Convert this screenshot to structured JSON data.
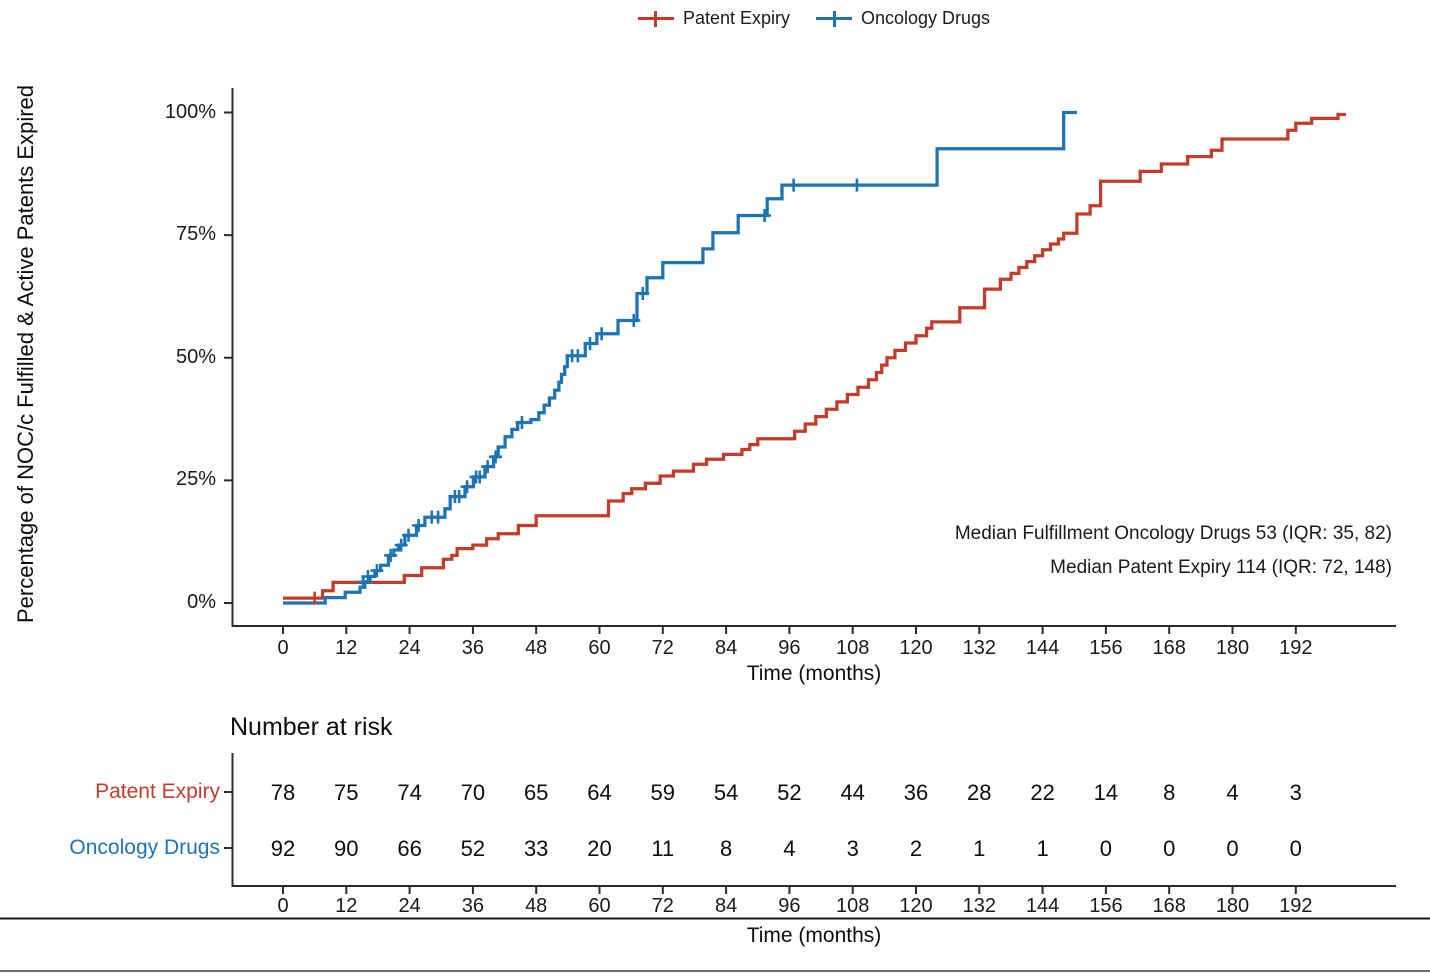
{
  "figure": {
    "y_axis_title": "Percentage of NOC/c Fulfilled & Active Patents Expired",
    "x_axis_title": "Time (months)",
    "risk_x_axis_title": "Time (months)"
  },
  "legend": {
    "items": [
      {
        "label": "Patent Expiry",
        "color": "#c43b2a"
      },
      {
        "label": "Oncology Drugs",
        "color": "#1e73b4"
      }
    ]
  },
  "annotations": {
    "line1": "Median Fulfillment Oncology Drugs  53 (IQR: 35, 82)",
    "line2": "Median Patent Expiry 114 (IQR: 72, 148)"
  },
  "risk_table": {
    "title": "Number at risk",
    "rows": [
      {
        "label": "Patent Expiry",
        "color": "#c43b2a",
        "values": [
          78,
          75,
          74,
          70,
          65,
          64,
          59,
          54,
          52,
          44,
          36,
          28,
          22,
          14,
          8,
          4,
          3
        ]
      },
      {
        "label": "Oncology Drugs",
        "color": "#1e73b4",
        "values": [
          92,
          90,
          66,
          52,
          33,
          20,
          11,
          8,
          4,
          3,
          2,
          1,
          1,
          0,
          0,
          0,
          0
        ]
      }
    ]
  },
  "chart_data": {
    "type": "line",
    "subtype": "kaplan-meier-cumulative-incidence-steps",
    "xlabel": "Time (months)",
    "ylabel": "Percentage of NOC/c Fulfilled & Active Patents Expired",
    "xlim": [
      0,
      204
    ],
    "ylim": [
      0,
      100
    ],
    "grid": false,
    "legend_position": "top",
    "x_ticks": [
      0,
      12,
      24,
      36,
      48,
      60,
      72,
      84,
      96,
      108,
      120,
      132,
      144,
      156,
      168,
      180,
      192
    ],
    "y_ticks": [
      {
        "value": 0,
        "label": "0%"
      },
      {
        "value": 25,
        "label": "25%"
      },
      {
        "value": 50,
        "label": "50%"
      },
      {
        "value": 75,
        "label": "75%"
      },
      {
        "value": 100,
        "label": "100%"
      }
    ],
    "series": [
      {
        "name": "Patent Expiry",
        "color": "#c43b2a",
        "median": 114,
        "iqr": [
          72,
          148
        ],
        "points": [
          [
            0,
            1
          ],
          [
            7.5,
            2.5
          ],
          [
            9.5,
            4.2
          ],
          [
            23,
            5.6
          ],
          [
            26.3,
            7.2
          ],
          [
            30.4,
            8.9
          ],
          [
            32,
            9.7
          ],
          [
            33,
            11.1
          ],
          [
            36,
            11.8
          ],
          [
            38.6,
            13.1
          ],
          [
            40.8,
            14.1
          ],
          [
            44.6,
            15.8
          ],
          [
            48,
            17.8
          ],
          [
            61.7,
            20.8
          ],
          [
            64.5,
            22.3
          ],
          [
            66.1,
            23.3
          ],
          [
            68.7,
            24.4
          ],
          [
            71.5,
            25.9
          ],
          [
            74,
            26.9
          ],
          [
            77.8,
            28.3
          ],
          [
            80.3,
            29.3
          ],
          [
            83.5,
            30.3
          ],
          [
            87,
            31.3
          ],
          [
            88.5,
            32.3
          ],
          [
            90,
            33.5
          ],
          [
            97,
            35
          ],
          [
            99,
            36.5
          ],
          [
            101,
            38
          ],
          [
            103,
            39.5
          ],
          [
            105,
            41
          ],
          [
            107,
            42.5
          ],
          [
            109,
            44
          ],
          [
            111,
            45.5
          ],
          [
            112.5,
            47
          ],
          [
            113.5,
            48.5
          ],
          [
            114.5,
            50
          ],
          [
            116,
            51.5
          ],
          [
            118,
            53
          ],
          [
            120,
            54.5
          ],
          [
            122,
            56
          ],
          [
            123,
            57.3
          ],
          [
            128.3,
            60.2
          ],
          [
            133,
            64
          ],
          [
            136,
            66
          ],
          [
            138,
            67.2
          ],
          [
            139.5,
            68.4
          ],
          [
            141,
            69.6
          ],
          [
            142.5,
            70.8
          ],
          [
            144,
            72
          ],
          [
            145.5,
            73.2
          ],
          [
            147,
            74.2
          ],
          [
            148,
            75.4
          ],
          [
            150.5,
            79.3
          ],
          [
            153,
            81
          ],
          [
            155,
            86
          ],
          [
            162.5,
            88
          ],
          [
            166.5,
            89.5
          ],
          [
            171.5,
            91
          ],
          [
            176,
            92.3
          ],
          [
            178,
            94.6
          ],
          [
            190.5,
            96.4
          ],
          [
            192,
            97.8
          ],
          [
            195,
            98.8
          ],
          [
            200,
            99.6
          ],
          [
            201.5,
            99.6
          ]
        ],
        "censor_marks": [
          [
            6,
            1
          ]
        ]
      },
      {
        "name": "Oncology Drugs",
        "color": "#1e73b4",
        "median": 53,
        "iqr": [
          35,
          82
        ],
        "points": [
          [
            0,
            0
          ],
          [
            8,
            1.1
          ],
          [
            11.8,
            2.2
          ],
          [
            14.6,
            3.2
          ],
          [
            15.5,
            4.3
          ],
          [
            16.5,
            5.4
          ],
          [
            17.4,
            6.6
          ],
          [
            18.5,
            7.7
          ],
          [
            20,
            9.7
          ],
          [
            21,
            10.8
          ],
          [
            21.9,
            11.8
          ],
          [
            23.1,
            13.8
          ],
          [
            25.3,
            15.8
          ],
          [
            26.9,
            17.5
          ],
          [
            30.7,
            19.2
          ],
          [
            31.7,
            21.7
          ],
          [
            34.5,
            23.7
          ],
          [
            36.1,
            25.7
          ],
          [
            38.3,
            27.8
          ],
          [
            39.9,
            29.8
          ],
          [
            40.8,
            31.8
          ],
          [
            42.1,
            33.9
          ],
          [
            43.4,
            35.4
          ],
          [
            44.5,
            36.8
          ],
          [
            47,
            37.4
          ],
          [
            48.5,
            38.8
          ],
          [
            49.5,
            40.3
          ],
          [
            50.5,
            41.8
          ],
          [
            51.5,
            43.4
          ],
          [
            52.3,
            45
          ],
          [
            52.8,
            46.6
          ],
          [
            53.4,
            48.2
          ],
          [
            53.9,
            50.4
          ],
          [
            57.3,
            52.9
          ],
          [
            59.5,
            54.9
          ],
          [
            63.5,
            57.6
          ],
          [
            67.1,
            63.1
          ],
          [
            69,
            66.3
          ],
          [
            72,
            69.4
          ],
          [
            79.6,
            72.2
          ],
          [
            81.5,
            75.5
          ],
          [
            86.3,
            79
          ],
          [
            91.8,
            82.4
          ],
          [
            94.6,
            85.2
          ],
          [
            124,
            92.6
          ],
          [
            148,
            100
          ],
          [
            150.5,
            100
          ]
        ],
        "censor_marks": [
          [
            15.2,
            4.3
          ],
          [
            16.1,
            5.4
          ],
          [
            17.8,
            6.6
          ],
          [
            20.4,
            9.7
          ],
          [
            22.4,
            11.8
          ],
          [
            23.8,
            13.8
          ],
          [
            25.7,
            15.8
          ],
          [
            28.2,
            17.5
          ],
          [
            29.4,
            17.5
          ],
          [
            32.6,
            21.7
          ],
          [
            33.4,
            21.7
          ],
          [
            34.9,
            23.7
          ],
          [
            36.6,
            25.7
          ],
          [
            37.3,
            25.7
          ],
          [
            38.8,
            27.8
          ],
          [
            40.3,
            29.8
          ],
          [
            45.3,
            36.8
          ],
          [
            54.8,
            50.4
          ],
          [
            55.9,
            50.4
          ],
          [
            58.2,
            52.9
          ],
          [
            60.4,
            54.9
          ],
          [
            66.5,
            57.6
          ],
          [
            68.2,
            63.1
          ],
          [
            91.3,
            79
          ],
          [
            96.8,
            85.2
          ],
          [
            108.8,
            85.2
          ]
        ]
      }
    ]
  }
}
